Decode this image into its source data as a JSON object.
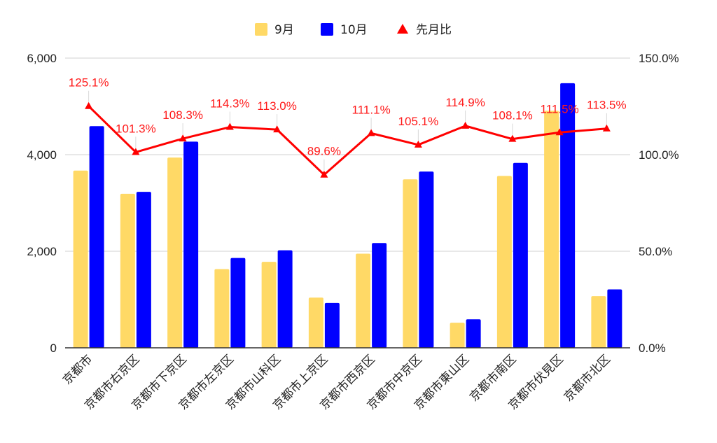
{
  "chart_data": {
    "type": "bar",
    "categories": [
      "京都市",
      "京都市右京区",
      "京都市下京区",
      "京都市左京区",
      "京都市山科区",
      "京都市上京区",
      "京都市西京区",
      "京都市中京区",
      "京都市東山区",
      "京都市南区",
      "京都市伏見区",
      "京都市北区"
    ],
    "series": [
      {
        "name": "9月",
        "type": "bar",
        "axis": "left",
        "color": "#ffd966",
        "values": [
          3670,
          3190,
          3940,
          1630,
          1780,
          1040,
          1950,
          3490,
          520,
          3560,
          4910,
          1070
        ]
      },
      {
        "name": "10月",
        "type": "bar",
        "axis": "left",
        "color": "#0000ff",
        "values": [
          4590,
          3230,
          4270,
          1860,
          2020,
          930,
          2170,
          3650,
          590,
          3830,
          5480,
          1210
        ]
      },
      {
        "name": "先月比",
        "type": "line",
        "axis": "right",
        "color": "#ff0000",
        "values": [
          125.1,
          101.3,
          108.3,
          114.3,
          113.0,
          89.6,
          111.1,
          105.1,
          114.9,
          108.1,
          111.5,
          113.5
        ],
        "labels": [
          "125.1%",
          "101.3%",
          "108.3%",
          "114.3%",
          "113.0%",
          "89.6%",
          "111.1%",
          "105.1%",
          "114.9%",
          "108.1%",
          "111.5%",
          "113.5%"
        ]
      }
    ],
    "y_left": {
      "min": 0,
      "max": 6000,
      "ticks": [
        0,
        2000,
        4000,
        6000
      ],
      "tick_labels": [
        "0",
        "2,000",
        "4,000",
        "6,000"
      ]
    },
    "y_right": {
      "min": 0,
      "max": 150,
      "ticks": [
        0,
        50,
        100,
        150
      ],
      "tick_labels": [
        "0.0%",
        "50.0%",
        "100.0%",
        "150.0%"
      ]
    },
    "grid": true,
    "legend_position": "top-center",
    "title": "",
    "xlabel": "",
    "ylabel": ""
  }
}
